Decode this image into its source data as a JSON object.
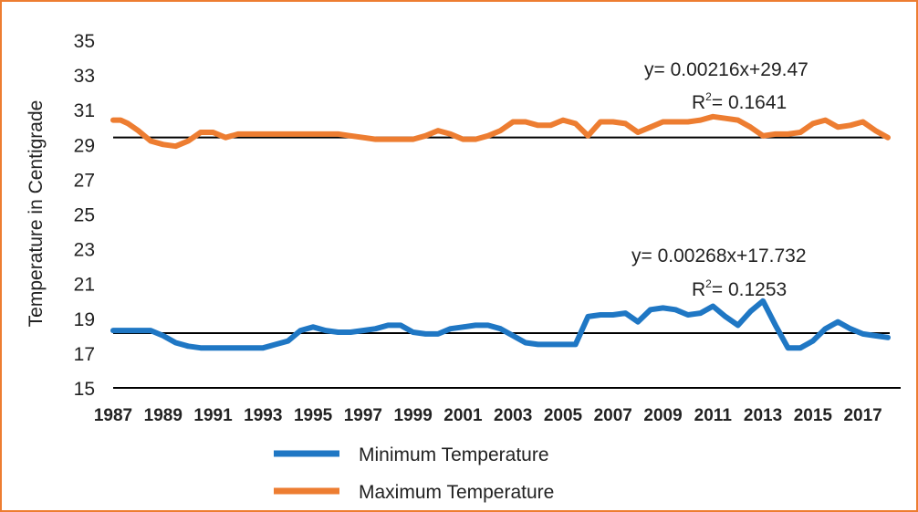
{
  "chart_data": {
    "type": "line",
    "title": "",
    "xlabel": "",
    "ylabel": "Temperature in Centigrade",
    "ylim": [
      15,
      35
    ],
    "yticks": [
      "35",
      "33",
      "31",
      "29",
      "27",
      "25",
      "23",
      "21",
      "19",
      "17",
      "15"
    ],
    "xticks": [
      "1987",
      "1989",
      "1991",
      "1993",
      "1995",
      "1997",
      "1999",
      "2001",
      "2003",
      "2005",
      "2007",
      "2009",
      "2011",
      "2013",
      "2015",
      "2017"
    ],
    "series": [
      {
        "name": "Maximum Temperature",
        "color": "#ed7d31",
        "x": [
          1987,
          1987.3,
          1987.6,
          1988,
          1988.5,
          1989,
          1989.5,
          1990,
          1990.5,
          1991,
          1991.5,
          1992,
          1992.5,
          1993,
          1993.5,
          1994,
          1995,
          1996,
          1997,
          1997.5,
          1998,
          1999,
          1999.5,
          2000,
          2000.5,
          2001,
          2001.5,
          2002,
          2002.5,
          2003,
          2003.5,
          2004,
          2004.5,
          2005,
          2005.5,
          2006,
          2006.5,
          2007,
          2007.5,
          2008,
          2008.5,
          2009,
          2009.5,
          2010,
          2010.5,
          2011,
          2011.5,
          2012,
          2012.5,
          2013,
          2013.5,
          2014,
          2014.5,
          2015,
          2015.5,
          2016,
          2016.5,
          2017,
          2017.5,
          2018
        ],
        "values": [
          30.4,
          30.4,
          30.2,
          29.8,
          29.2,
          29.0,
          28.9,
          29.2,
          29.7,
          29.7,
          29.4,
          29.6,
          29.6,
          29.6,
          29.6,
          29.6,
          29.6,
          29.6,
          29.4,
          29.3,
          29.3,
          29.3,
          29.5,
          29.8,
          29.6,
          29.3,
          29.3,
          29.5,
          29.8,
          30.3,
          30.3,
          30.1,
          30.1,
          30.4,
          30.2,
          29.5,
          30.3,
          30.3,
          30.2,
          29.7,
          30.0,
          30.3,
          30.3,
          30.3,
          30.4,
          30.6,
          30.5,
          30.4,
          30.0,
          29.5,
          29.6,
          29.6,
          29.7,
          30.2,
          30.4,
          30.0,
          30.1,
          30.3,
          29.8,
          29.4
        ]
      },
      {
        "name": "Minimum Temperature",
        "color": "#1f77c4",
        "x": [
          1987,
          1987.5,
          1988,
          1988.5,
          1989,
          1989.5,
          1990,
          1990.5,
          1991,
          1991.5,
          1992,
          1992.5,
          1993,
          1993.5,
          1994,
          1994.5,
          1995,
          1995.5,
          1996,
          1996.5,
          1997,
          1997.5,
          1998,
          1998.5,
          1999,
          1999.5,
          2000,
          2000.5,
          2001,
          2001.5,
          2002,
          2002.5,
          2003,
          2003.5,
          2004,
          2004.5,
          2005,
          2005.5,
          2006,
          2006.5,
          2007,
          2007.5,
          2008,
          2008.5,
          2009,
          2009.5,
          2010,
          2010.5,
          2011,
          2011.5,
          2012,
          2012.5,
          2013,
          2013.5,
          2014,
          2014.5,
          2015,
          2015.5,
          2016,
          2016.5,
          2017,
          2017.5,
          2018
        ],
        "values": [
          18.3,
          18.3,
          18.3,
          18.3,
          18.0,
          17.6,
          17.4,
          17.3,
          17.3,
          17.3,
          17.3,
          17.3,
          17.3,
          17.5,
          17.7,
          18.3,
          18.5,
          18.3,
          18.2,
          18.2,
          18.3,
          18.4,
          18.6,
          18.6,
          18.2,
          18.1,
          18.1,
          18.4,
          18.5,
          18.6,
          18.6,
          18.4,
          18.0,
          17.6,
          17.5,
          17.5,
          17.5,
          17.5,
          19.1,
          19.2,
          19.2,
          19.3,
          18.8,
          19.5,
          19.6,
          19.5,
          19.2,
          19.3,
          19.7,
          19.1,
          18.6,
          19.4,
          20.0,
          18.6,
          17.3,
          17.3,
          17.7,
          18.4,
          18.8,
          18.4,
          18.1,
          18.0,
          17.9
        ]
      }
    ],
    "trendlines": [
      {
        "series": "Maximum Temperature",
        "equation": "y= 0.00216x+29.47",
        "r2_prefix": "R",
        "r2_sup": "2",
        "r2_value": "= 0.1641",
        "level": 29.4
      },
      {
        "series": "Minimum Temperature",
        "equation": "y= 0.00268x+17.732",
        "r2_prefix": "R",
        "r2_sup": "2",
        "r2_value": "= 0.1253",
        "level": 18.15
      }
    ],
    "legend": [
      {
        "name": "Minimum Temperature",
        "color": "#1f77c4"
      },
      {
        "name": "Maximum Temperature",
        "color": "#ed7d31"
      }
    ],
    "legend_position": "bottom",
    "grid": false
  },
  "colors": {
    "frame": "#ed7d31",
    "trend": "#000000"
  }
}
